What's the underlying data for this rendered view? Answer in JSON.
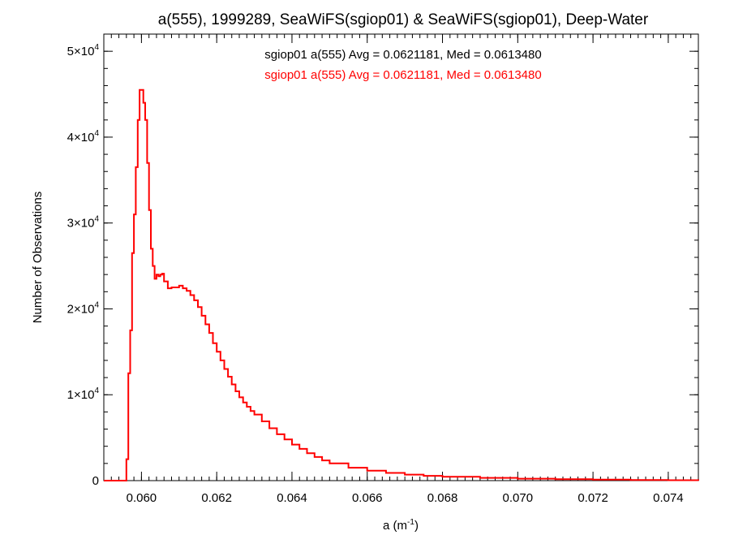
{
  "chart_data": {
    "type": "line",
    "title": "a(555), 1999289, SeaWiFS(sgiop01) & SeaWiFS(sgiop01), Deep-Water",
    "xlabel": "a (m",
    "xlabel_sup": "-1",
    "xlabel_close": ")",
    "ylabel": "Number of Observations",
    "xlim": [
      0.059,
      0.0748
    ],
    "ylim": [
      0,
      52000
    ],
    "x_ticks": [
      {
        "value": 0.06,
        "label": "0.060"
      },
      {
        "value": 0.062,
        "label": "0.062"
      },
      {
        "value": 0.064,
        "label": "0.064"
      },
      {
        "value": 0.066,
        "label": "0.066"
      },
      {
        "value": 0.068,
        "label": "0.068"
      },
      {
        "value": 0.07,
        "label": "0.070"
      },
      {
        "value": 0.072,
        "label": "0.072"
      },
      {
        "value": 0.074,
        "label": "0.074"
      }
    ],
    "y_ticks": [
      {
        "value": 0,
        "mant": "0",
        "exp": ""
      },
      {
        "value": 10000,
        "mant": "1×10",
        "exp": "4"
      },
      {
        "value": 20000,
        "mant": "2×10",
        "exp": "4"
      },
      {
        "value": 30000,
        "mant": "3×10",
        "exp": "4"
      },
      {
        "value": 40000,
        "mant": "4×10",
        "exp": "4"
      },
      {
        "value": 50000,
        "mant": "5×10",
        "exp": "4"
      }
    ],
    "annotations": [
      {
        "text": "sgiop01 a(555) Avg = 0.0621181, Med = 0.0613480",
        "color": "#000000"
      },
      {
        "text": "sgiop01 a(555) Avg = 0.0621181, Med = 0.0613480",
        "color": "#ff0000"
      }
    ],
    "series": [
      {
        "color": "#ff0000",
        "step": true,
        "x": [
          0.059,
          0.0596,
          0.05965,
          0.0597,
          0.05975,
          0.0598,
          0.05985,
          0.0599,
          0.05995,
          0.06,
          0.06005,
          0.0601,
          0.06015,
          0.0602,
          0.06025,
          0.0603,
          0.06035,
          0.0604,
          0.06045,
          0.0605,
          0.06055,
          0.0606,
          0.0607,
          0.0608,
          0.0609,
          0.061,
          0.0611,
          0.0612,
          0.0613,
          0.0614,
          0.0615,
          0.0616,
          0.0617,
          0.0618,
          0.0619,
          0.062,
          0.0621,
          0.0622,
          0.0623,
          0.0624,
          0.0625,
          0.0626,
          0.0627,
          0.0628,
          0.0629,
          0.063,
          0.0632,
          0.0634,
          0.0636,
          0.0638,
          0.064,
          0.0642,
          0.0644,
          0.0646,
          0.0648,
          0.065,
          0.0655,
          0.066,
          0.0665,
          0.067,
          0.0675,
          0.068,
          0.069,
          0.07,
          0.071,
          0.072,
          0.073,
          0.074,
          0.0748
        ],
        "y": [
          0,
          2500,
          12500,
          17500,
          26500,
          31000,
          36500,
          42000,
          45500,
          45500,
          44000,
          42000,
          37000,
          31500,
          27000,
          25000,
          23500,
          24000,
          23800,
          24000,
          24100,
          23200,
          22400,
          22500,
          22500,
          22700,
          22400,
          22100,
          21600,
          21000,
          20200,
          19200,
          18200,
          17200,
          16000,
          15000,
          14000,
          13000,
          12100,
          11200,
          10400,
          9700,
          9100,
          8600,
          8100,
          7700,
          6900,
          6100,
          5400,
          4800,
          4200,
          3700,
          3200,
          2750,
          2350,
          2000,
          1500,
          1150,
          900,
          700,
          560,
          450,
          320,
          230,
          170,
          120,
          80,
          50,
          0
        ]
      }
    ]
  }
}
